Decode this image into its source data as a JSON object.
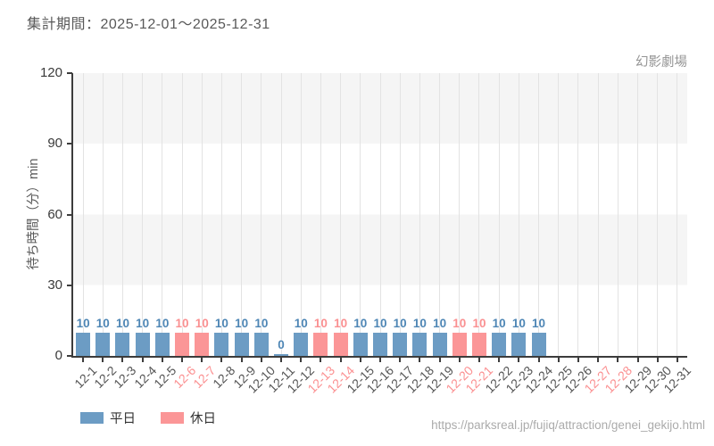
{
  "header": {
    "title": "集計期間：2025-12-01～2025-12-31"
  },
  "footer": {
    "url": "https://parksreal.jp/fujiq/attraction/genei_gekijo.html"
  },
  "colors": {
    "weekday_bar": "#6c9cc4",
    "holiday_bar": "#fb9697",
    "weekday_label": "#4e86b5",
    "holiday_label": "#fa9091",
    "band_gray": "#f5f5f5",
    "gridline": "#e3e3e3",
    "axis": "#3c3c3c"
  },
  "chart_data": {
    "type": "bar",
    "title": "幻影劇場",
    "xlabel": "",
    "ylabel": "待ち時間（分）min",
    "ylim": [
      0,
      120
    ],
    "yticks": [
      0,
      30,
      60,
      90,
      120
    ],
    "grid": "vertical gridlines per date; alternating horizontal gray/white bands every 30 units",
    "legend_position": "bottom-left",
    "legend": [
      {
        "label": "平日",
        "color": "#6c9cc4"
      },
      {
        "label": "休日",
        "color": "#fb9697"
      }
    ],
    "points": [
      {
        "date": "12-1",
        "value": 10,
        "day_type": "weekday"
      },
      {
        "date": "12-2",
        "value": 10,
        "day_type": "weekday"
      },
      {
        "date": "12-3",
        "value": 10,
        "day_type": "weekday"
      },
      {
        "date": "12-4",
        "value": 10,
        "day_type": "weekday"
      },
      {
        "date": "12-5",
        "value": 10,
        "day_type": "weekday"
      },
      {
        "date": "12-6",
        "value": 10,
        "day_type": "holiday"
      },
      {
        "date": "12-7",
        "value": 10,
        "day_type": "holiday"
      },
      {
        "date": "12-8",
        "value": 10,
        "day_type": "weekday"
      },
      {
        "date": "12-9",
        "value": 10,
        "day_type": "weekday"
      },
      {
        "date": "12-10",
        "value": 10,
        "day_type": "weekday"
      },
      {
        "date": "12-11",
        "value": 0,
        "day_type": "weekday"
      },
      {
        "date": "12-12",
        "value": 10,
        "day_type": "weekday"
      },
      {
        "date": "12-13",
        "value": 10,
        "day_type": "holiday"
      },
      {
        "date": "12-14",
        "value": 10,
        "day_type": "holiday"
      },
      {
        "date": "12-15",
        "value": 10,
        "day_type": "weekday"
      },
      {
        "date": "12-16",
        "value": 10,
        "day_type": "weekday"
      },
      {
        "date": "12-17",
        "value": 10,
        "day_type": "weekday"
      },
      {
        "date": "12-18",
        "value": 10,
        "day_type": "weekday"
      },
      {
        "date": "12-19",
        "value": 10,
        "day_type": "weekday"
      },
      {
        "date": "12-20",
        "value": 10,
        "day_type": "holiday"
      },
      {
        "date": "12-21",
        "value": 10,
        "day_type": "holiday"
      },
      {
        "date": "12-22",
        "value": 10,
        "day_type": "weekday"
      },
      {
        "date": "12-23",
        "value": 10,
        "day_type": "weekday"
      },
      {
        "date": "12-24",
        "value": 10,
        "day_type": "weekday"
      },
      {
        "date": "12-25",
        "value": null,
        "day_type": "weekday"
      },
      {
        "date": "12-26",
        "value": null,
        "day_type": "weekday"
      },
      {
        "date": "12-27",
        "value": null,
        "day_type": "holiday"
      },
      {
        "date": "12-28",
        "value": null,
        "day_type": "holiday"
      },
      {
        "date": "12-29",
        "value": null,
        "day_type": "weekday"
      },
      {
        "date": "12-30",
        "value": null,
        "day_type": "weekday"
      },
      {
        "date": "12-31",
        "value": null,
        "day_type": "weekday"
      }
    ]
  }
}
